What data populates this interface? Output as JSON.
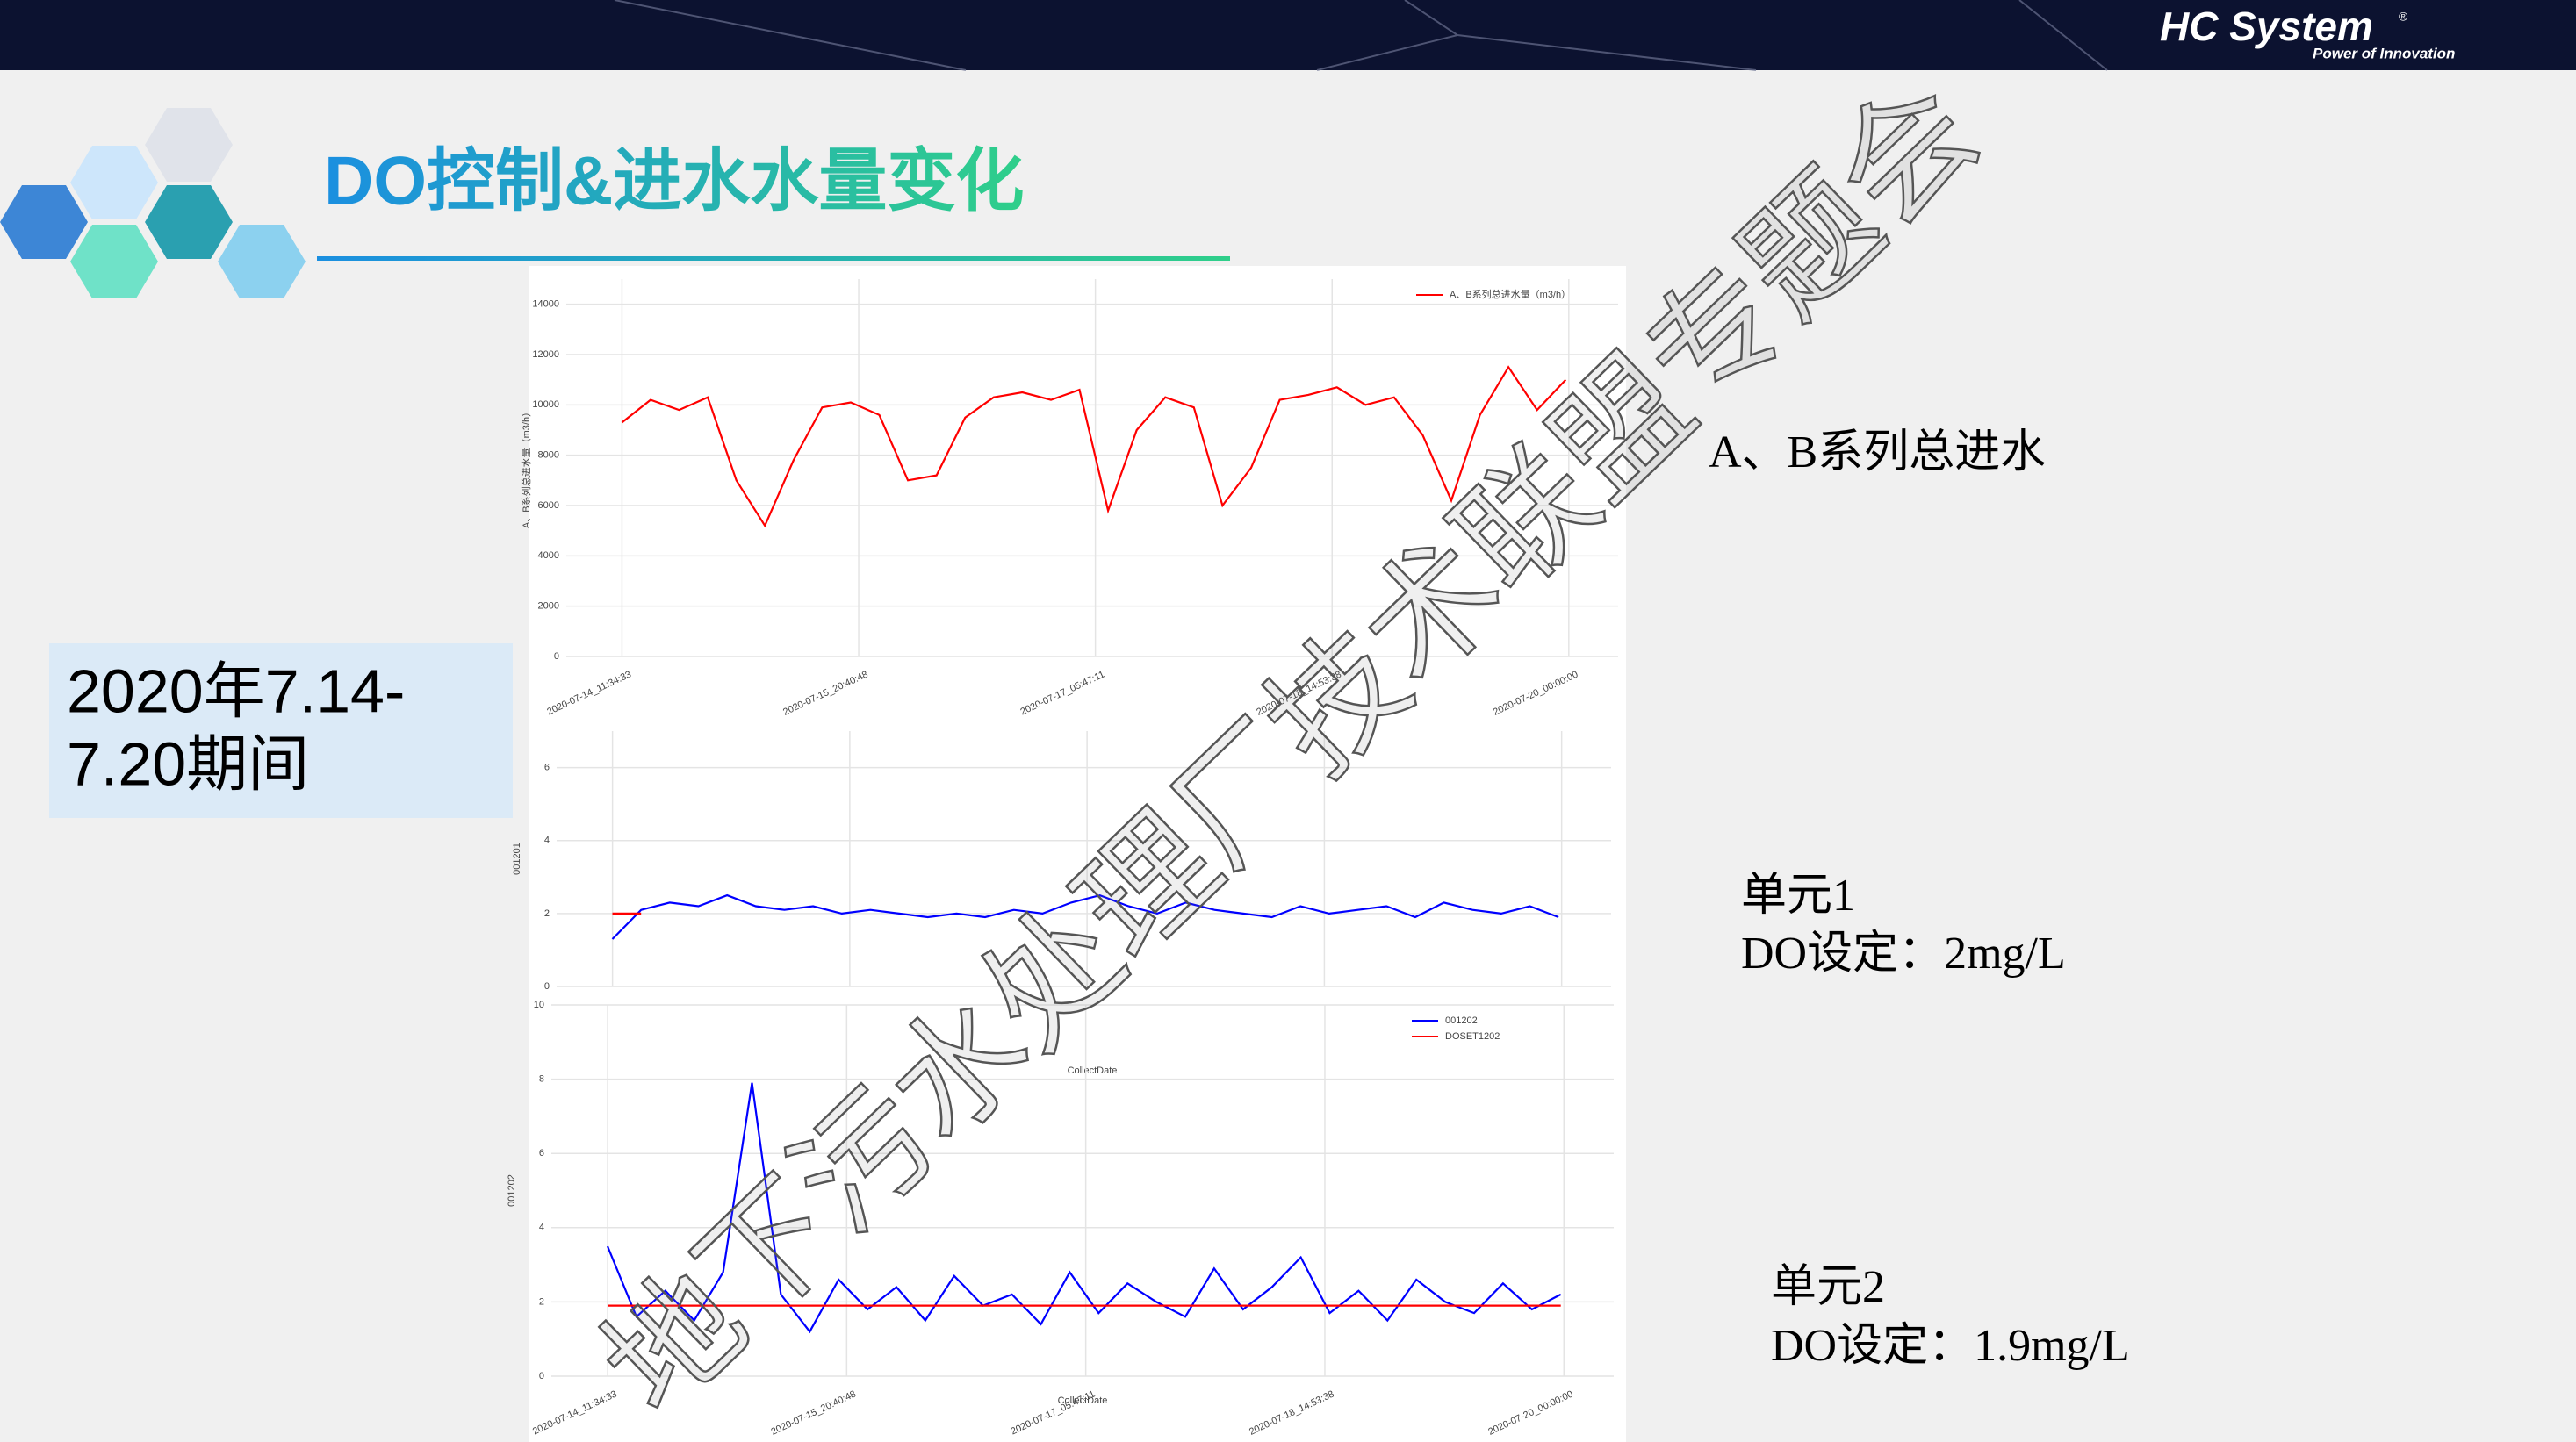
{
  "header": {
    "brand": "HC System",
    "registered": "®",
    "slogan": "Power of Innovation"
  },
  "title": "DO控制&进水水量变化",
  "period": {
    "line1": "2020年7.14-",
    "line2": "7.20期间"
  },
  "labels": {
    "inflow": "A、B系列总进水",
    "unit1": "单元1",
    "unit1_setpoint": "DO设定：2mg/L",
    "unit2": "单元2",
    "unit2_setpoint": "DO设定：1.9mg/L"
  },
  "watermark": "地下污水处理厂技术联盟专题会",
  "chart_data": [
    {
      "type": "line",
      "ylabel": "A、B系列总进水量（m3/h）",
      "xlabel": "CollectDate",
      "grid": true,
      "legend": "upper right",
      "xlim": [
        "2020-07-14_03:47:00",
        "2020-07-20_06:54:00"
      ],
      "xticks": [
        "2020-07-14_11:34:33",
        "2020-07-15_20:40:48",
        "2020-07-17_05:47:11",
        "2020-07-18_14:53:38",
        "2020-07-20_00:00:00"
      ],
      "ylim": [
        0,
        15000
      ],
      "yticks": [
        0,
        2000,
        4000,
        6000,
        8000,
        10000,
        12000,
        14000
      ],
      "x": [
        "2020-07-14T11:34",
        "2020-07-14T15:34",
        "2020-07-14T19:34",
        "2020-07-14T23:34",
        "2020-07-15T03:34",
        "2020-07-15T07:34",
        "2020-07-15T11:34",
        "2020-07-15T15:34",
        "2020-07-15T19:34",
        "2020-07-15T23:34",
        "2020-07-16T03:34",
        "2020-07-16T07:34",
        "2020-07-16T11:34",
        "2020-07-16T15:34",
        "2020-07-16T19:34",
        "2020-07-16T23:34",
        "2020-07-17T03:34",
        "2020-07-17T07:34",
        "2020-07-17T11:34",
        "2020-07-17T15:34",
        "2020-07-17T19:34",
        "2020-07-17T23:34",
        "2020-07-18T03:34",
        "2020-07-18T07:34",
        "2020-07-18T11:34",
        "2020-07-18T15:34",
        "2020-07-18T19:34",
        "2020-07-18T23:34",
        "2020-07-19T03:34",
        "2020-07-19T07:34",
        "2020-07-19T11:34",
        "2020-07-19T15:34",
        "2020-07-19T19:34",
        "2020-07-19T23:34"
      ],
      "series": [
        {
          "name": "A、B系列总进水量（m3/h）",
          "color": "#ff0000",
          "values": [
            9300,
            10200,
            9800,
            10300,
            7000,
            5200,
            7800,
            9900,
            10100,
            9600,
            7000,
            7200,
            9500,
            10300,
            10500,
            10200,
            10600,
            5800,
            9000,
            10300,
            9900,
            6000,
            7500,
            10200,
            10400,
            10700,
            10000,
            10300,
            8800,
            6200,
            9600,
            11500,
            9800,
            11000
          ]
        }
      ]
    },
    {
      "type": "line",
      "ylabel": "001201",
      "grid": true,
      "xtick_labels": false,
      "xlim": [
        "2020-07-14_03:47:00",
        "2020-07-20_06:54:00"
      ],
      "xticks": [
        "2020-07-14_11:34:33",
        "2020-07-15_20:40:48",
        "2020-07-17_05:47:11",
        "2020-07-18_14:53:38",
        "2020-07-20_00:00:00"
      ],
      "ylim": [
        0,
        7
      ],
      "yticks": [
        0,
        2,
        4,
        6
      ],
      "x": [
        "2020-07-14T11:34",
        "2020-07-14T15:34",
        "2020-07-14T19:34",
        "2020-07-14T23:34",
        "2020-07-15T03:34",
        "2020-07-15T07:34",
        "2020-07-15T11:34",
        "2020-07-15T15:34",
        "2020-07-15T19:34",
        "2020-07-15T23:34",
        "2020-07-16T03:34",
        "2020-07-16T07:34",
        "2020-07-16T11:34",
        "2020-07-16T15:34",
        "2020-07-16T19:34",
        "2020-07-16T23:34",
        "2020-07-17T03:34",
        "2020-07-17T07:34",
        "2020-07-17T11:34",
        "2020-07-17T15:34",
        "2020-07-17T19:34",
        "2020-07-17T23:34",
        "2020-07-18T03:34",
        "2020-07-18T07:34",
        "2020-07-18T11:34",
        "2020-07-18T15:34",
        "2020-07-18T19:34",
        "2020-07-18T23:34",
        "2020-07-19T03:34",
        "2020-07-19T07:34",
        "2020-07-19T11:34",
        "2020-07-19T15:34",
        "2020-07-19T19:34",
        "2020-07-19T23:34"
      ],
      "series": [
        {
          "color": "#0000ff",
          "values": [
            1.3,
            2.1,
            2.3,
            2.2,
            2.5,
            2.2,
            2.1,
            2.2,
            2.0,
            2.1,
            2.0,
            1.9,
            2.0,
            1.9,
            2.1,
            2.0,
            2.3,
            2.5,
            2.2,
            2.0,
            2.3,
            2.1,
            2.0,
            1.9,
            2.2,
            2.0,
            2.1,
            2.2,
            1.9,
            2.3,
            2.1,
            2.0,
            2.2,
            1.9
          ]
        },
        {
          "color": "#ff0000",
          "values": [
            2,
            2,
            null,
            null,
            null,
            null,
            null,
            null,
            null,
            null,
            null,
            null,
            null,
            null,
            null,
            null,
            null,
            null,
            null,
            null,
            null,
            null,
            null,
            null,
            null,
            null,
            null,
            null,
            null,
            null,
            null,
            null,
            null,
            null
          ]
        }
      ]
    },
    {
      "type": "line",
      "ylabel": "001202",
      "xlabel": "CollectDate",
      "grid": true,
      "legend": "upper right",
      "xlim": [
        "2020-07-14_03:47:00",
        "2020-07-20_06:54:00"
      ],
      "xticks": [
        "2020-07-14_11:34:33",
        "2020-07-15_20:40:48",
        "2020-07-17_05:47:11",
        "2020-07-18_14:53:38",
        "2020-07-20_00:00:00"
      ],
      "ylim": [
        0,
        10
      ],
      "yticks": [
        0,
        2,
        4,
        6,
        8,
        10
      ],
      "x": [
        "2020-07-14T11:34",
        "2020-07-14T15:34",
        "2020-07-14T19:34",
        "2020-07-14T23:34",
        "2020-07-15T03:34",
        "2020-07-15T07:34",
        "2020-07-15T11:34",
        "2020-07-15T15:34",
        "2020-07-15T19:34",
        "2020-07-15T23:34",
        "2020-07-16T03:34",
        "2020-07-16T07:34",
        "2020-07-16T11:34",
        "2020-07-16T15:34",
        "2020-07-16T19:34",
        "2020-07-16T23:34",
        "2020-07-17T03:34",
        "2020-07-17T07:34",
        "2020-07-17T11:34",
        "2020-07-17T15:34",
        "2020-07-17T19:34",
        "2020-07-17T23:34",
        "2020-07-18T03:34",
        "2020-07-18T07:34",
        "2020-07-18T11:34",
        "2020-07-18T15:34",
        "2020-07-18T19:34",
        "2020-07-18T23:34",
        "2020-07-19T03:34",
        "2020-07-19T07:34",
        "2020-07-19T11:34",
        "2020-07-19T15:34",
        "2020-07-19T19:34",
        "2020-07-19T23:34"
      ],
      "series": [
        {
          "name": "001202",
          "color": "#0000ff",
          "values": [
            3.5,
            1.6,
            2.3,
            1.5,
            2.8,
            7.9,
            2.2,
            1.2,
            2.6,
            1.8,
            2.4,
            1.5,
            2.7,
            1.9,
            2.2,
            1.4,
            2.8,
            1.7,
            2.5,
            2.0,
            1.6,
            2.9,
            1.8,
            2.4,
            3.2,
            1.7,
            2.3,
            1.5,
            2.6,
            2.0,
            1.7,
            2.5,
            1.8,
            2.2
          ]
        },
        {
          "name": "DOSET1202",
          "color": "#ff0000",
          "values": [
            1.9,
            1.9,
            1.9,
            1.9,
            1.9,
            1.9,
            1.9,
            1.9,
            1.9,
            1.9,
            1.9,
            1.9,
            1.9,
            1.9,
            1.9,
            1.9,
            1.9,
            1.9,
            1.9,
            1.9,
            1.9,
            1.9,
            1.9,
            1.9,
            1.9,
            1.9,
            1.9,
            1.9,
            1.9,
            1.9,
            1.9,
            1.9,
            1.9,
            1.9
          ]
        }
      ]
    }
  ]
}
